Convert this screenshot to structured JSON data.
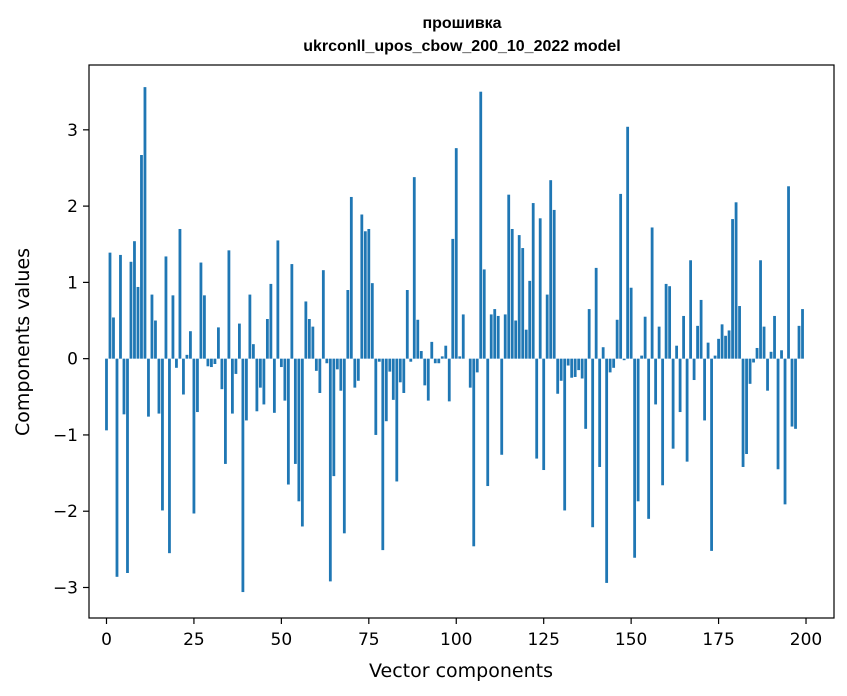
{
  "chart_data": {
    "type": "bar",
    "title": "прошивка",
    "subtitle": "ukrconll_upos_cbow_200_10_2022 model",
    "xlabel": "Vector components",
    "ylabel": "Components values",
    "xlim": [
      -5,
      208
    ],
    "ylim": [
      -3.4,
      3.85
    ],
    "x_ticks": [
      0,
      25,
      50,
      75,
      100,
      125,
      150,
      175,
      200
    ],
    "x_tick_labels": [
      "0",
      "25",
      "50",
      "75",
      "100",
      "125",
      "150",
      "175",
      "200"
    ],
    "y_ticks": [
      -3,
      -2,
      -1,
      0,
      1,
      2,
      3
    ],
    "y_tick_labels": [
      "−3",
      "−2",
      "−1",
      "0",
      "1",
      "2",
      "3"
    ],
    "grid": false,
    "bar_color": "#1f77b4",
    "categories": [
      0,
      1,
      2,
      3,
      4,
      5,
      6,
      7,
      8,
      9,
      10,
      11,
      12,
      13,
      14,
      15,
      16,
      17,
      18,
      19,
      20,
      21,
      22,
      23,
      24,
      25,
      26,
      27,
      28,
      29,
      30,
      31,
      32,
      33,
      34,
      35,
      36,
      37,
      38,
      39,
      40,
      41,
      42,
      43,
      44,
      45,
      46,
      47,
      48,
      49,
      50,
      51,
      52,
      53,
      54,
      55,
      56,
      57,
      58,
      59,
      60,
      61,
      62,
      63,
      64,
      65,
      66,
      67,
      68,
      69,
      70,
      71,
      72,
      73,
      74,
      75,
      76,
      77,
      78,
      79,
      80,
      81,
      82,
      83,
      84,
      85,
      86,
      87,
      88,
      89,
      90,
      91,
      92,
      93,
      94,
      95,
      96,
      97,
      98,
      99,
      100,
      101,
      102,
      103,
      104,
      105,
      106,
      107,
      108,
      109,
      110,
      111,
      112,
      113,
      114,
      115,
      116,
      117,
      118,
      119,
      120,
      121,
      122,
      123,
      124,
      125,
      126,
      127,
      128,
      129,
      130,
      131,
      132,
      133,
      134,
      135,
      136,
      137,
      138,
      139,
      140,
      141,
      142,
      143,
      144,
      145,
      146,
      147,
      148,
      149,
      150,
      151,
      152,
      153,
      154,
      155,
      156,
      157,
      158,
      159,
      160,
      161,
      162,
      163,
      164,
      165,
      166,
      167,
      168,
      169,
      170,
      171,
      172,
      173,
      174,
      175,
      176,
      177,
      178,
      179,
      180,
      181,
      182,
      183,
      184,
      185,
      186,
      187,
      188,
      189,
      190,
      191,
      192,
      193,
      194,
      195,
      196,
      197,
      198,
      199
    ],
    "values": [
      -0.94,
      1.39,
      0.54,
      -2.86,
      1.36,
      -0.73,
      -2.81,
      1.27,
      1.54,
      0.94,
      2.67,
      3.56,
      -0.76,
      0.84,
      0.5,
      -0.72,
      -1.99,
      1.34,
      -2.55,
      0.83,
      -0.12,
      1.7,
      -0.47,
      0.05,
      0.36,
      -2.03,
      -0.7,
      1.26,
      0.83,
      -0.1,
      -0.11,
      -0.07,
      0.41,
      -0.4,
      -1.38,
      1.42,
      -0.72,
      -0.2,
      0.46,
      -3.06,
      -0.81,
      0.84,
      0.19,
      -0.69,
      -0.38,
      -0.6,
      0.52,
      0.98,
      -0.71,
      1.55,
      -0.11,
      -0.55,
      -1.65,
      1.24,
      -1.38,
      -1.87,
      -2.2,
      0.75,
      0.52,
      0.42,
      -0.16,
      -0.45,
      1.16,
      -0.06,
      -2.92,
      -1.54,
      -0.14,
      -0.42,
      -2.29,
      0.9,
      2.12,
      -0.38,
      -0.29,
      1.89,
      1.67,
      1.7,
      0.99,
      -1.0,
      -0.04,
      -2.51,
      -0.82,
      -0.17,
      -0.54,
      -1.61,
      -0.31,
      -0.45,
      0.9,
      -0.04,
      2.38,
      0.51,
      0.1,
      -0.35,
      -0.55,
      0.22,
      -0.06,
      -0.06,
      0.03,
      0.17,
      -0.56,
      1.57,
      2.76,
      0.03,
      0.58,
      0.0,
      -0.38,
      -2.46,
      -0.18,
      3.5,
      1.17,
      -1.67,
      0.58,
      0.65,
      0.56,
      -1.26,
      0.58,
      2.15,
      1.7,
      0.5,
      1.62,
      1.45,
      0.38,
      1.02,
      2.04,
      -1.31,
      1.84,
      -1.46,
      0.84,
      2.34,
      1.95,
      -0.46,
      -0.29,
      -1.99,
      -0.09,
      -0.25,
      -0.24,
      -0.15,
      -0.26,
      -0.92,
      0.65,
      -2.21,
      1.19,
      -1.42,
      0.15,
      -2.94,
      -0.18,
      -0.12,
      0.51,
      2.16,
      -0.02,
      3.04,
      0.93,
      -2.61,
      -1.87,
      0.04,
      0.55,
      -2.1,
      1.72,
      -0.6,
      0.42,
      -1.66,
      0.98,
      0.95,
      -1.18,
      0.17,
      -0.7,
      0.56,
      -1.35,
      1.29,
      -0.28,
      0.43,
      0.77,
      -0.81,
      0.21,
      -2.52,
      0.04,
      0.26,
      0.45,
      0.3,
      0.37,
      1.83,
      2.05,
      0.69,
      -1.42,
      -1.25,
      -0.33,
      -0.05,
      0.14,
      1.29,
      0.42,
      -0.42,
      0.09,
      0.56,
      -1.45,
      0.11,
      -1.91,
      2.26,
      -0.89,
      -0.92,
      0.43,
      0.65
    ]
  }
}
